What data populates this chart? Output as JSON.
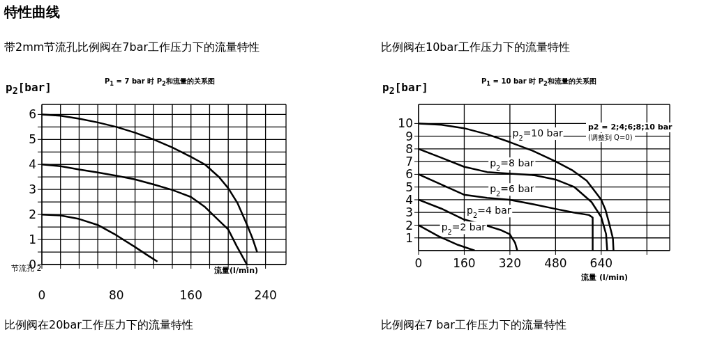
{
  "chart_data": [
    {
      "type": "line",
      "title": "带2mm节流孔比例阀在7bar工作压力下的流量特性",
      "subtitle": "P$_{1}$ = 7 bar 时 P$_{2}$和流量的关系图",
      "xlabel": "流量(l/min)",
      "ylabel": "p$_{2}$[bar]",
      "annotations": [
        "特性曲线",
        "节流孔 2",
        "比例阀在20bar工作压力下的流量特性"
      ],
      "xlim": [
        0,
        262
      ],
      "ylim": [
        0,
        6.4
      ],
      "xticks": [
        0,
        {
          "value": 20,
          "label": null
        },
        {
          "value": 40,
          "label": null
        },
        {
          "value": 60,
          "label": null
        },
        80,
        {
          "value": 100,
          "label": null
        },
        {
          "value": 120,
          "label": null
        },
        {
          "value": 140,
          "label": null
        },
        160,
        {
          "value": 180,
          "label": null
        },
        {
          "value": 200,
          "label": null
        },
        {
          "value": 220,
          "label": null
        },
        240
      ],
      "yticks": [
        0,
        {
          "value": 0.5,
          "label": null
        },
        1,
        {
          "value": 1.5,
          "label": null
        },
        2,
        {
          "value": 2.5,
          "label": null
        },
        3,
        {
          "value": 3.5,
          "label": null
        },
        4,
        {
          "value": 4.5,
          "label": null
        },
        5,
        {
          "value": 5.5,
          "label": null
        },
        6
      ],
      "grid": true,
      "series": [
        {
          "color": "#000000",
          "x": [
            0,
            20,
            40,
            60,
            80,
            100,
            120,
            140,
            160,
            175,
            190,
            200,
            210,
            220,
            226,
            231
          ],
          "values": [
            6,
            5.95,
            5.83,
            5.68,
            5.5,
            5.27,
            5.0,
            4.68,
            4.3,
            4.0,
            3.5,
            3.05,
            2.45,
            1.6,
            1.05,
            0.5
          ]
        },
        {
          "color": "#000000",
          "x": [
            0,
            20,
            40,
            60,
            80,
            100,
            120,
            140,
            160,
            175,
            191,
            200,
            209,
            220
          ],
          "values": [
            4,
            3.93,
            3.8,
            3.68,
            3.55,
            3.4,
            3.2,
            2.98,
            2.7,
            2.3,
            1.72,
            1.4,
            0.74,
            0
          ]
        },
        {
          "color": "#000000",
          "x": [
            0,
            20,
            40,
            60,
            80,
            100,
            113,
            124
          ],
          "values": [
            2,
            1.96,
            1.82,
            1.58,
            1.17,
            0.7,
            0.38,
            0.12
          ]
        }
      ]
    },
    {
      "type": "line",
      "title": "比例阀在10bar工作压力下的流量特性",
      "subtitle": "P$_{1}$ = 10 bar 时 P$_{2}$和流量的关系图",
      "xlabel": "流量 (l/min)",
      "ylabel": "p$_{2}$[bar]",
      "annotations": [
        "p2 = 2;4;6;8;10 bar",
        "(调整到 Q=0)",
        "比例阀在7 bar工作压力下的流量特性"
      ],
      "xlim": [
        0,
        880
      ],
      "ylim": [
        0,
        11.5
      ],
      "xticks": [
        0,
        160,
        320,
        480,
        640,
        {
          "value": 800,
          "label": null
        }
      ],
      "yticks": [
        1,
        2,
        3,
        4,
        5,
        6,
        7,
        8,
        9,
        10
      ],
      "grid": true,
      "series": [
        {
          "name": "p$_{2}$=10 bar",
          "color": "#000000",
          "x": [
            0,
            80,
            159,
            240,
            319,
            400,
            480,
            540,
            589,
            620,
            640,
            655,
            666,
            681,
            683
          ],
          "values": [
            10,
            9.9,
            9.63,
            9.15,
            8.54,
            7.85,
            7.02,
            6.3,
            5.5,
            4.6,
            4.0,
            3.2,
            2.3,
            0.96,
            0
          ]
        },
        {
          "name": "p$_{2}$=8 bar",
          "color": "#000000",
          "x": [
            0,
            80,
            159,
            240,
            320,
            406,
            480,
            546,
            606,
            640,
            657,
            661
          ],
          "values": [
            8,
            7.3,
            6.6,
            6.18,
            6.05,
            5.93,
            5.59,
            5.0,
            3.82,
            2.64,
            1.3,
            0
          ]
        },
        {
          "name": "p$_{2}$=6 bar",
          "color": "#000000",
          "x": [
            0,
            80,
            159,
            240,
            319,
            400,
            480,
            546,
            597,
            610,
            610
          ],
          "values": [
            6,
            5.2,
            4.4,
            4.15,
            4.0,
            3.65,
            3.28,
            2.98,
            2.8,
            2.6,
            0
          ]
        },
        {
          "name": "p$_{2}$=4 bar",
          "color": "#000000",
          "x": [
            0,
            80,
            159,
            240,
            290,
            319,
            338,
            346
          ],
          "values": [
            4,
            3.3,
            2.45,
            1.95,
            1.6,
            1.3,
            0.62,
            0
          ]
        },
        {
          "name": "p$_{2}$=2 bar",
          "color": "#000000",
          "x": [
            0,
            70,
            138,
            197
          ],
          "values": [
            2,
            1.13,
            0.45,
            0
          ]
        }
      ]
    }
  ]
}
